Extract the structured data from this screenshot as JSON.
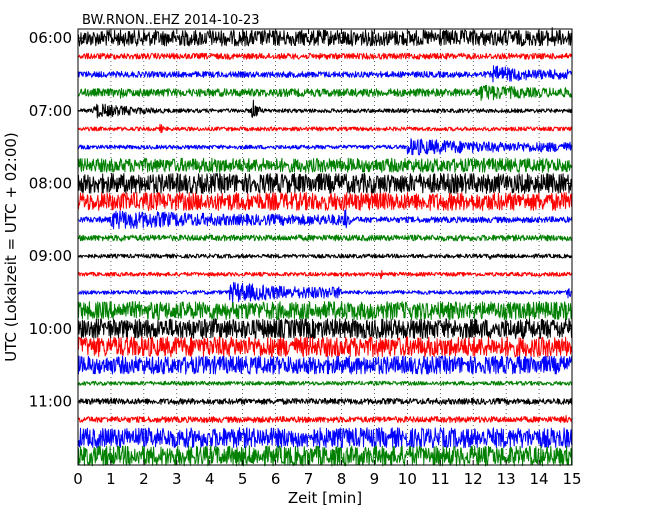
{
  "chart_data": {
    "type": "line",
    "title": "BW.RNON..EHZ 2014-10-23",
    "xlabel": "Zeit  [min]",
    "ylabel": "UTC (Lokalzeit = UTC + 02:00)",
    "xlim": [
      0,
      15
    ],
    "x_ticks": [
      "0",
      "1",
      "2",
      "3",
      "4",
      "5",
      "6",
      "7",
      "8",
      "9",
      "10",
      "11",
      "12",
      "13",
      "14",
      "15"
    ],
    "y_ticks": [
      "06:00",
      "07:00",
      "08:00",
      "09:00",
      "10:00",
      "11:00"
    ],
    "grid": "vertical dotted at minute ticks",
    "trace_colors": [
      "#000000",
      "#ff0000",
      "#0000ff",
      "#008000"
    ],
    "traces": [
      {
        "start": "06:00",
        "amplitude": 8,
        "events": [
          {
            "t": 14.4,
            "a": 12,
            "d": 0.8
          }
        ]
      },
      {
        "start": "06:15",
        "amplitude": 3,
        "events": []
      },
      {
        "start": "06:30",
        "amplitude": 3,
        "events": [
          {
            "t": 12.6,
            "a": 9,
            "d": 2.4,
            "step": true
          }
        ]
      },
      {
        "start": "06:45",
        "amplitude": 4,
        "events": [
          {
            "t": 1.3,
            "a": 7,
            "d": 0.5
          },
          {
            "t": 12.2,
            "a": 9,
            "d": 2.8,
            "step": true
          }
        ]
      },
      {
        "start": "07:00",
        "amplitude": 2,
        "events": [
          {
            "t": 0.5,
            "a": 8,
            "d": 5.0
          },
          {
            "t": 5.3,
            "a": 13,
            "d": 0.5
          }
        ]
      },
      {
        "start": "07:15",
        "amplitude": 2,
        "events": [
          {
            "t": 2.5,
            "a": 6,
            "d": 0.3
          }
        ]
      },
      {
        "start": "07:30",
        "amplitude": 2,
        "events": [
          {
            "t": 10.0,
            "a": 9,
            "d": 5.0,
            "step": true
          }
        ]
      },
      {
        "start": "07:45",
        "amplitude": 7,
        "events": [
          {
            "t": 4.0,
            "a": 9,
            "d": 5.0
          }
        ]
      },
      {
        "start": "08:00",
        "amplitude": 10,
        "events": [
          {
            "t": 10.7,
            "a": 12,
            "d": 0.6
          }
        ]
      },
      {
        "start": "08:15",
        "amplitude": 9,
        "events": []
      },
      {
        "start": "08:30",
        "amplitude": 3,
        "events": [
          {
            "t": 1.0,
            "a": 10,
            "d": 7.3,
            "step": true
          },
          {
            "t": 8.1,
            "a": 13,
            "d": 0.4
          }
        ]
      },
      {
        "start": "08:45",
        "amplitude": 3,
        "events": [
          {
            "t": 1.3,
            "a": 5,
            "d": 0.5
          }
        ]
      },
      {
        "start": "09:00",
        "amplitude": 2,
        "events": [
          {
            "t": 12.5,
            "a": 5,
            "d": 0.3
          }
        ]
      },
      {
        "start": "09:15",
        "amplitude": 2,
        "events": [
          {
            "t": 9.2,
            "a": 5,
            "d": 0.3
          }
        ]
      },
      {
        "start": "09:30",
        "amplitude": 2,
        "events": [
          {
            "t": 4.6,
            "a": 11,
            "d": 3.4,
            "step": true
          },
          {
            "t": 14.9,
            "a": 10,
            "d": 0.2
          }
        ]
      },
      {
        "start": "09:45",
        "amplitude": 9,
        "events": []
      },
      {
        "start": "10:00",
        "amplitude": 10,
        "events": []
      },
      {
        "start": "10:15",
        "amplitude": 10,
        "events": []
      },
      {
        "start": "10:30",
        "amplitude": 9,
        "events": [
          {
            "t": 3.9,
            "a": 11,
            "d": 0.5
          }
        ]
      },
      {
        "start": "10:45",
        "amplitude": 2,
        "events": []
      },
      {
        "start": "11:00",
        "amplitude": 3,
        "events": []
      },
      {
        "start": "11:15",
        "amplitude": 3,
        "events": [
          {
            "t": 14.8,
            "a": 6,
            "d": 0.3
          }
        ]
      },
      {
        "start": "11:30",
        "amplitude": 10,
        "events": [
          {
            "t": 0.7,
            "a": 11,
            "d": 0.5
          }
        ]
      },
      {
        "start": "11:45",
        "amplitude": 10,
        "events": []
      }
    ]
  }
}
